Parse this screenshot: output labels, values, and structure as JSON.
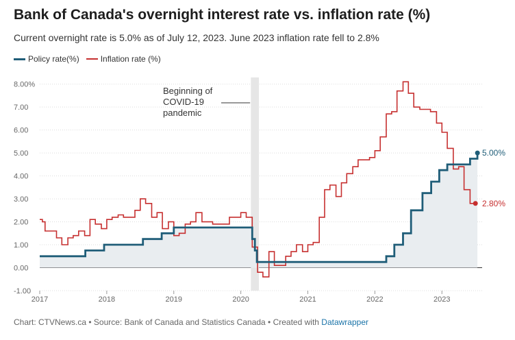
{
  "chart_data": {
    "type": "line",
    "title": "Bank of Canada's overnight interest rate vs. inflation rate (%)",
    "subtitle": "Current overnight rate is 5.0% as of July 12, 2023. June 2023 inflation rate fell to 2.8%",
    "xlabel": "",
    "ylabel": "",
    "x_ticks": [
      "2017",
      "2018",
      "2019",
      "2020",
      "2021",
      "2022",
      "2023"
    ],
    "y_ticks": [
      "8.00%",
      "7.00",
      "6.00",
      "5.00",
      "4.00",
      "3.00",
      "2.00",
      "1.00",
      "0.00",
      "-1.00"
    ],
    "xlim": [
      2017.0,
      2023.6
    ],
    "ylim": [
      -1,
      8.2
    ],
    "legend_position": "top-left",
    "grid": true,
    "annotation": {
      "text_lines": [
        "Beginning of",
        "COVID-19",
        "pandemic"
      ],
      "x": 2020.2
    },
    "end_labels": {
      "policy": "5.00%",
      "inflation": "2.80%"
    },
    "series": [
      {
        "name": "Policy rate(%)",
        "color": "#1f5d78",
        "x": [
          2017.0,
          2017.5,
          2017.68,
          2017.96,
          2018.54,
          2018.82,
          2019.0,
          2019.5,
          2020.0,
          2020.17,
          2020.21,
          2020.24,
          2020.5,
          2021.0,
          2021.5,
          2022.0,
          2022.17,
          2022.29,
          2022.42,
          2022.54,
          2022.71,
          2022.84,
          2022.96,
          2023.08,
          2023.42,
          2023.53
        ],
        "values": [
          0.5,
          0.5,
          0.75,
          1.0,
          1.25,
          1.5,
          1.75,
          1.75,
          1.75,
          1.25,
          0.75,
          0.25,
          0.25,
          0.25,
          0.25,
          0.25,
          0.5,
          1.0,
          1.5,
          2.5,
          3.25,
          3.75,
          4.25,
          4.5,
          4.75,
          5.0
        ]
      },
      {
        "name": "Inflation rate (%)",
        "color": "#c62f2f",
        "x": [
          2017.0,
          2017.04,
          2017.08,
          2017.17,
          2017.25,
          2017.33,
          2017.42,
          2017.5,
          2017.58,
          2017.67,
          2017.75,
          2017.83,
          2017.92,
          2018.0,
          2018.08,
          2018.17,
          2018.25,
          2018.33,
          2018.42,
          2018.5,
          2018.58,
          2018.67,
          2018.75,
          2018.83,
          2018.92,
          2019.0,
          2019.08,
          2019.17,
          2019.25,
          2019.33,
          2019.42,
          2019.5,
          2019.58,
          2019.67,
          2019.75,
          2019.83,
          2019.92,
          2020.0,
          2020.08,
          2020.17,
          2020.25,
          2020.33,
          2020.42,
          2020.5,
          2020.58,
          2020.67,
          2020.75,
          2020.83,
          2020.92,
          2021.0,
          2021.08,
          2021.17,
          2021.25,
          2021.33,
          2021.42,
          2021.5,
          2021.58,
          2021.67,
          2021.75,
          2021.83,
          2021.92,
          2022.0,
          2022.08,
          2022.17,
          2022.25,
          2022.33,
          2022.42,
          2022.5,
          2022.58,
          2022.67,
          2022.75,
          2022.83,
          2022.92,
          2023.0,
          2023.08,
          2023.17,
          2023.25,
          2023.33,
          2023.42,
          2023.5
        ],
        "values": [
          2.1,
          2.0,
          1.6,
          1.6,
          1.3,
          1.0,
          1.3,
          1.4,
          1.6,
          1.4,
          2.1,
          1.9,
          1.7,
          2.1,
          2.2,
          2.3,
          2.2,
          2.2,
          2.5,
          3.0,
          2.8,
          2.2,
          2.4,
          1.7,
          2.0,
          1.4,
          1.5,
          1.9,
          2.0,
          2.4,
          2.0,
          2.0,
          1.9,
          1.9,
          1.9,
          2.2,
          2.2,
          2.4,
          2.2,
          0.9,
          -0.2,
          -0.4,
          0.7,
          0.1,
          0.1,
          0.5,
          0.7,
          1.0,
          0.7,
          1.0,
          1.1,
          2.2,
          3.4,
          3.6,
          3.1,
          3.7,
          4.1,
          4.4,
          4.7,
          4.7,
          4.8,
          5.1,
          5.7,
          6.7,
          6.8,
          7.7,
          8.1,
          7.6,
          7.0,
          6.9,
          6.9,
          6.8,
          6.3,
          5.9,
          5.2,
          4.3,
          4.4,
          3.4,
          2.8,
          2.8
        ]
      }
    ]
  },
  "legend": {
    "policy_label": "Policy rate(%)",
    "inflation_label": "Inflation rate (%)"
  },
  "footer": {
    "text": "Chart: CTVNews.ca • Source: Bank of Canada and Statistics Canada • Created with ",
    "link": "Datawrapper"
  }
}
